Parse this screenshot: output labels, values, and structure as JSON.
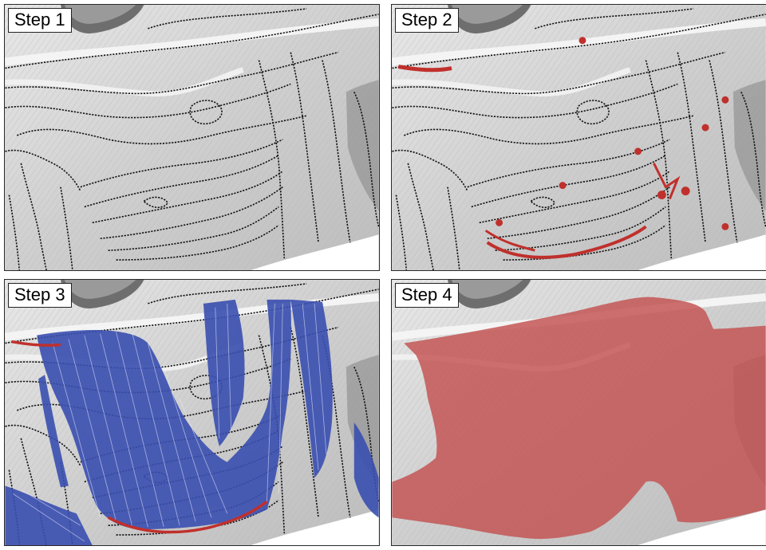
{
  "panels": [
    {
      "label": "Step 1"
    },
    {
      "label": "Step 2"
    },
    {
      "label": "Step 3"
    },
    {
      "label": "Step 4"
    }
  ],
  "colors": {
    "hillshade_light": "#e6e6e6",
    "hillshade_dark": "#8c8c8c",
    "contour": "#111111",
    "highlight_red": "#c0302c",
    "flow_blue": "#3a4fb0",
    "landslide_fill": "#c2504f"
  }
}
